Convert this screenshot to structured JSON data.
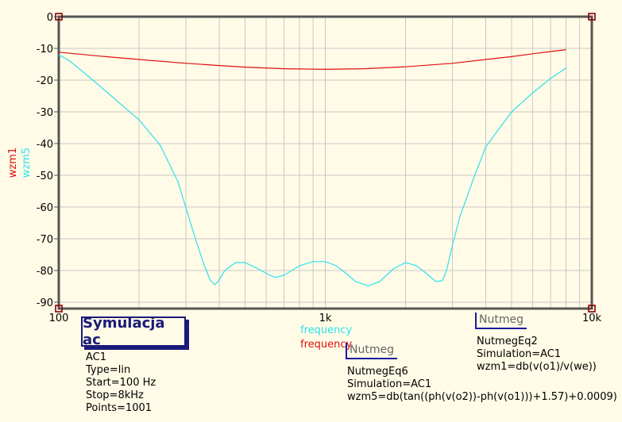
{
  "chart_data": {
    "type": "line",
    "xscale": "log",
    "xlim": [
      100,
      10000
    ],
    "ylim": [
      -92,
      0
    ],
    "grid": true,
    "x_ticks": [
      {
        "v": 100,
        "label": "100"
      },
      {
        "v": 1000,
        "label": "1k"
      },
      {
        "v": 10000,
        "label": "10k"
      }
    ],
    "y_ticks": [
      {
        "v": 0,
        "label": "0"
      },
      {
        "v": -10,
        "label": "-10"
      },
      {
        "v": -20,
        "label": "-20"
      },
      {
        "v": -30,
        "label": "-30"
      },
      {
        "v": -40,
        "label": "-40"
      },
      {
        "v": -50,
        "label": "-50"
      },
      {
        "v": -60,
        "label": "-60"
      },
      {
        "v": -70,
        "label": "-70"
      },
      {
        "v": -80,
        "label": "-80"
      },
      {
        "v": -90,
        "label": "-90"
      }
    ],
    "xlabels": [
      {
        "text": "frequency",
        "color": "#2fe0f0"
      },
      {
        "text": "frequency",
        "color": "#e01010"
      }
    ],
    "ylabels": [
      {
        "text": "wzm1",
        "color": "#e01010"
      },
      {
        "text": "wzm5",
        "color": "#2fe0f0"
      }
    ],
    "series": [
      {
        "name": "wzm1",
        "color": "#e01010",
        "x": [
          100,
          150,
          200,
          300,
          400,
          500,
          700,
          1000,
          1400,
          2000,
          3000,
          4000,
          5000,
          6000,
          7000,
          8000
        ],
        "y": [
          -11.2,
          -12.6,
          -13.5,
          -14.7,
          -15.4,
          -15.9,
          -16.4,
          -16.6,
          -16.4,
          -15.8,
          -14.7,
          -13.5,
          -12.6,
          -11.7,
          -11.0,
          -10.4
        ]
      },
      {
        "name": "wzm5",
        "color": "#2fe0f0",
        "x": [
          100,
          110,
          130,
          160,
          200,
          240,
          280,
          320,
          350,
          370,
          385,
          400,
          420,
          460,
          500,
          560,
          620,
          650,
          700,
          800,
          900,
          1000,
          1100,
          1200,
          1300,
          1450,
          1600,
          1800,
          2000,
          2200,
          2400,
          2600,
          2750,
          2850,
          3000,
          3200,
          3600,
          4000,
          5000,
          6000,
          7000,
          8000
        ],
        "y": [
          -12,
          -14,
          -19,
          -25.5,
          -32.5,
          -40.5,
          -52,
          -68,
          -78,
          -83,
          -84.5,
          -83,
          -80,
          -77.5,
          -77.5,
          -79.5,
          -81.5,
          -82.2,
          -81.5,
          -78.5,
          -77.2,
          -77.2,
          -78.5,
          -81,
          -83.5,
          -84.8,
          -83.5,
          -79.5,
          -77.5,
          -78.5,
          -81,
          -83.5,
          -83.2,
          -80,
          -72,
          -63,
          -51,
          -41,
          -30,
          -24,
          -19.5,
          -16.2
        ]
      }
    ]
  },
  "sim_box": {
    "title": "Symulacja ac",
    "lines": [
      "AC1",
      "Type=lin",
      "Start=100 Hz",
      "Stop=8kHz",
      "Points=1001"
    ]
  },
  "eq_box_partial": {
    "tag": "Nutmeg"
  },
  "eq6": {
    "lines": [
      "NutmegEq6",
      "Simulation=AC1",
      "wzm5=db(tan((ph(v(o2))-ph(v(o1)))+1.57)+0.0009)"
    ]
  },
  "eq2": {
    "tag": "Nutmeg",
    "lines": [
      "NutmegEq2",
      "Simulation=AC1",
      "wzm1=db(v(o1)/v(we))"
    ]
  }
}
